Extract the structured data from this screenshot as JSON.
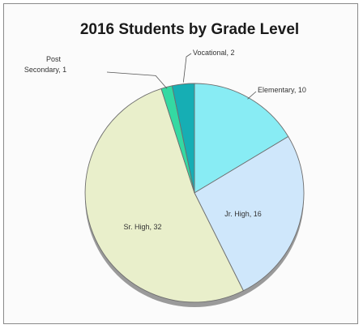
{
  "chart_data": {
    "type": "pie",
    "title": "2016 Students by Grade Level",
    "slices": [
      {
        "label": "Elementary",
        "value": 10,
        "color": "#88ecf4"
      },
      {
        "label": "Jr. High",
        "value": 16,
        "color": "#cfe7fb"
      },
      {
        "label": "Sr. High",
        "value": 32,
        "color": "#e9efcb"
      },
      {
        "label": "Post Secondary",
        "value": 1,
        "color": "#34d9a2"
      },
      {
        "label": "Vocational",
        "value": 2,
        "color": "#16aeb4"
      }
    ],
    "data_labels": [
      "Elementary, 10",
      "Jr. High, 16",
      "Sr. High, 32",
      "Post Secondary, 1",
      "Vocational, 2"
    ],
    "legend": "none"
  }
}
